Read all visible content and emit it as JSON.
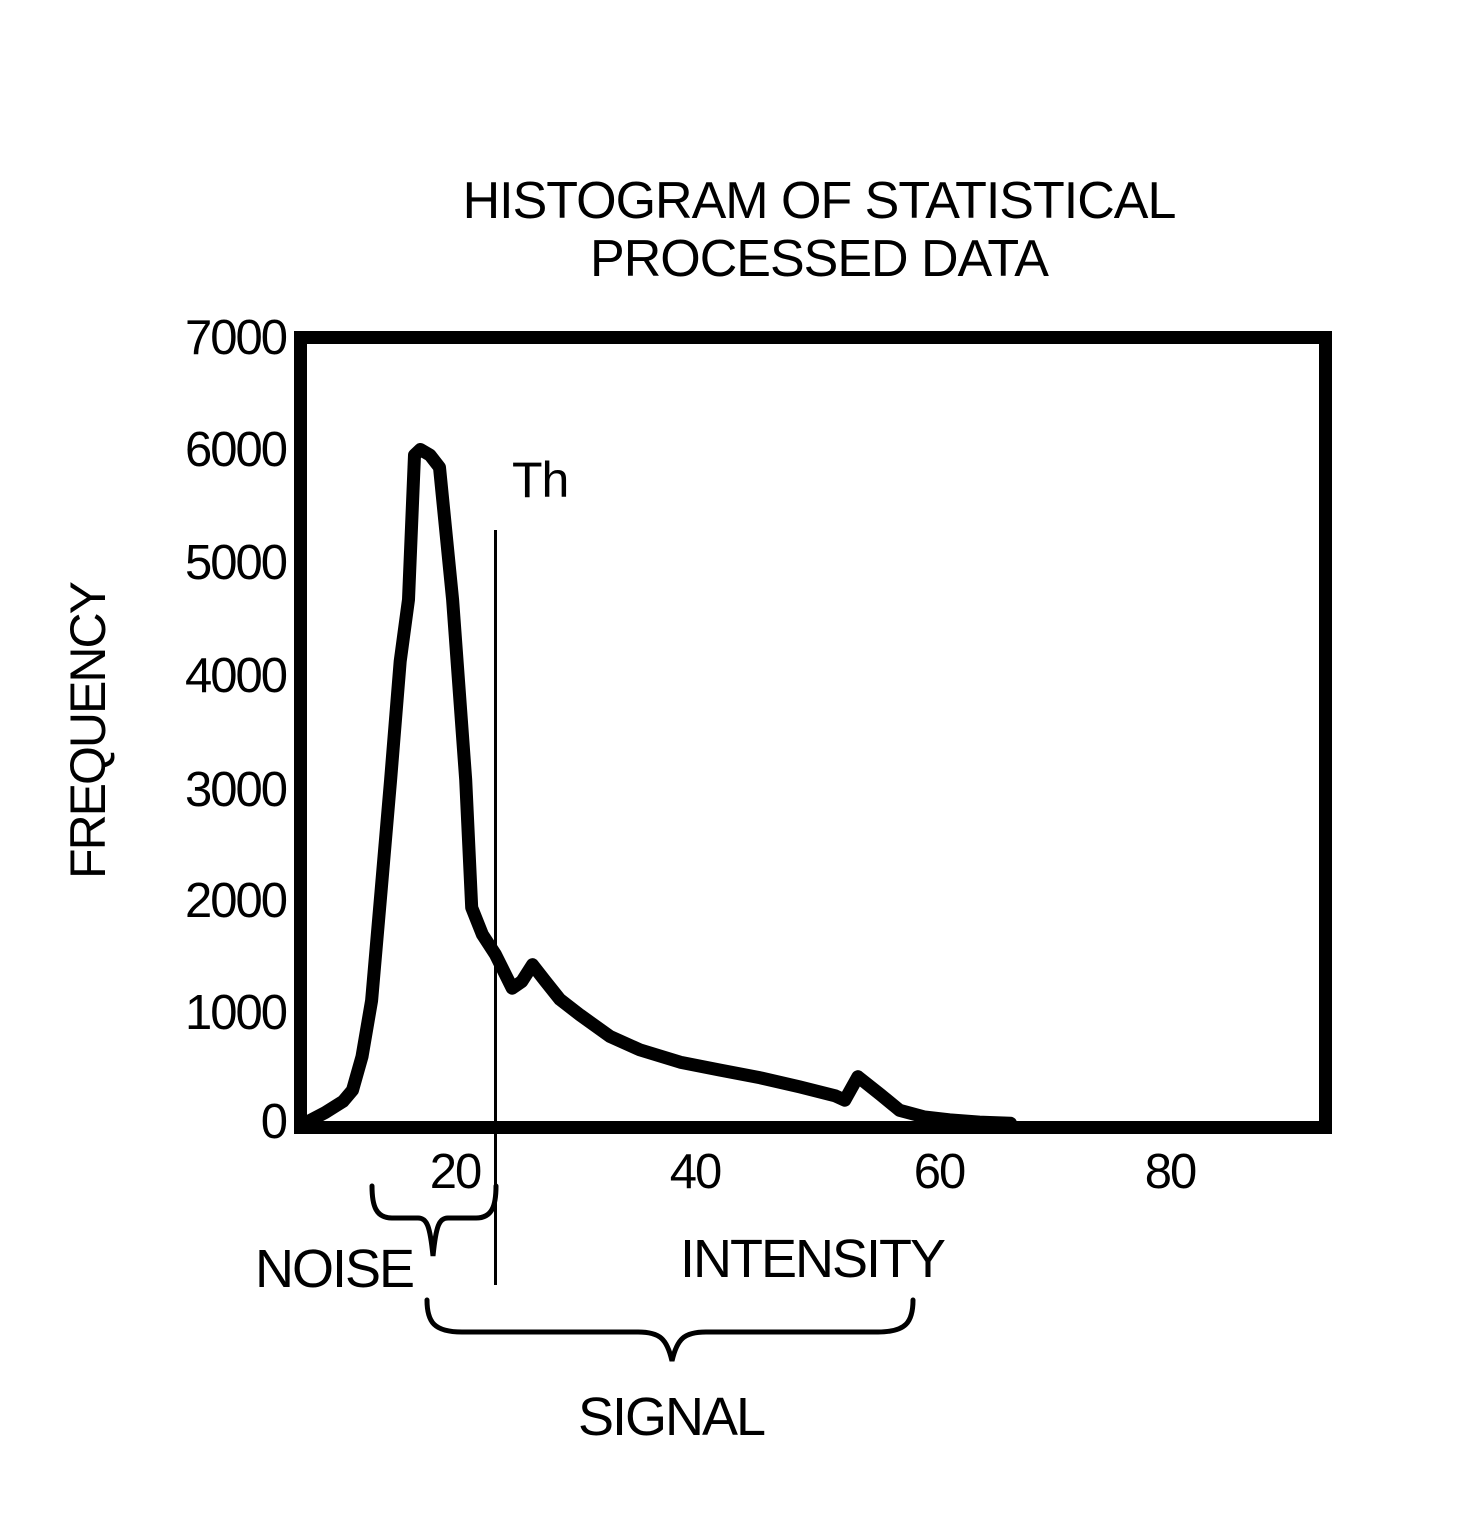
{
  "figure": {
    "title_line1": "HISTOGRAM OF STATISTICAL",
    "title_line2": "PROCESSED DATA",
    "y_axis_title": "FREQUENCY",
    "x_axis_title": "INTENSITY",
    "threshold_label": "Th",
    "noise_label": "NOISE",
    "signal_label": "SIGNAL"
  },
  "chart_data": {
    "type": "line",
    "title": "HISTOGRAM OF STATISTICAL PROCESSED DATA",
    "xlabel": "INTENSITY",
    "ylabel": "FREQUENCY",
    "xlim": [
      7,
      93
    ],
    "ylim": [
      0,
      7000
    ],
    "xticks": [
      20,
      40,
      60,
      80
    ],
    "yticks": [
      0,
      1000,
      2000,
      3000,
      4000,
      5000,
      6000,
      7000
    ],
    "xtick_labels": [
      "20",
      "40",
      "60",
      "80"
    ],
    "ytick_labels": [
      "7000",
      "6000",
      "5000",
      "4000",
      "3000",
      "2000",
      "1000",
      "0"
    ],
    "grid": false,
    "legend": false,
    "line_color": "#000000",
    "background_color": "#ffffff",
    "series": [
      {
        "name": "frequency histogram curve",
        "points": [
          [
            7.5,
            30
          ],
          [
            9.1,
            120
          ],
          [
            10.6,
            220
          ],
          [
            11.4,
            320
          ],
          [
            12.2,
            620
          ],
          [
            13.0,
            1120
          ],
          [
            13.8,
            2100
          ],
          [
            14.6,
            3090
          ],
          [
            15.4,
            4150
          ],
          [
            16.1,
            4700
          ],
          [
            16.6,
            5990
          ],
          [
            17.1,
            6040
          ],
          [
            17.9,
            5990
          ],
          [
            18.7,
            5880
          ],
          [
            19.8,
            4700
          ],
          [
            20.9,
            3090
          ],
          [
            21.4,
            1950
          ],
          [
            22.3,
            1710
          ],
          [
            23.4,
            1530
          ],
          [
            24.8,
            1230
          ],
          [
            25.6,
            1290
          ],
          [
            26.5,
            1440
          ],
          [
            27.6,
            1290
          ],
          [
            28.8,
            1130
          ],
          [
            30.5,
            990
          ],
          [
            33.0,
            800
          ],
          [
            35.5,
            680
          ],
          [
            38.9,
            570
          ],
          [
            42.2,
            500
          ],
          [
            45.6,
            430
          ],
          [
            48.9,
            350
          ],
          [
            51.9,
            270
          ],
          [
            52.7,
            230
          ],
          [
            53.8,
            440
          ],
          [
            55.7,
            280
          ],
          [
            57.3,
            140
          ],
          [
            59.4,
            80
          ],
          [
            61.5,
            55
          ],
          [
            64.0,
            35
          ],
          [
            66.6,
            25
          ]
        ]
      }
    ],
    "annotations": {
      "threshold": {
        "label": "Th",
        "x": 23.4
      },
      "noise_range": {
        "label": "NOISE",
        "x_from": 13.0,
        "x_to": 23.4
      },
      "signal_range": {
        "label": "SIGNAL",
        "x_from": 17.6,
        "x_to": 58.4
      }
    }
  }
}
